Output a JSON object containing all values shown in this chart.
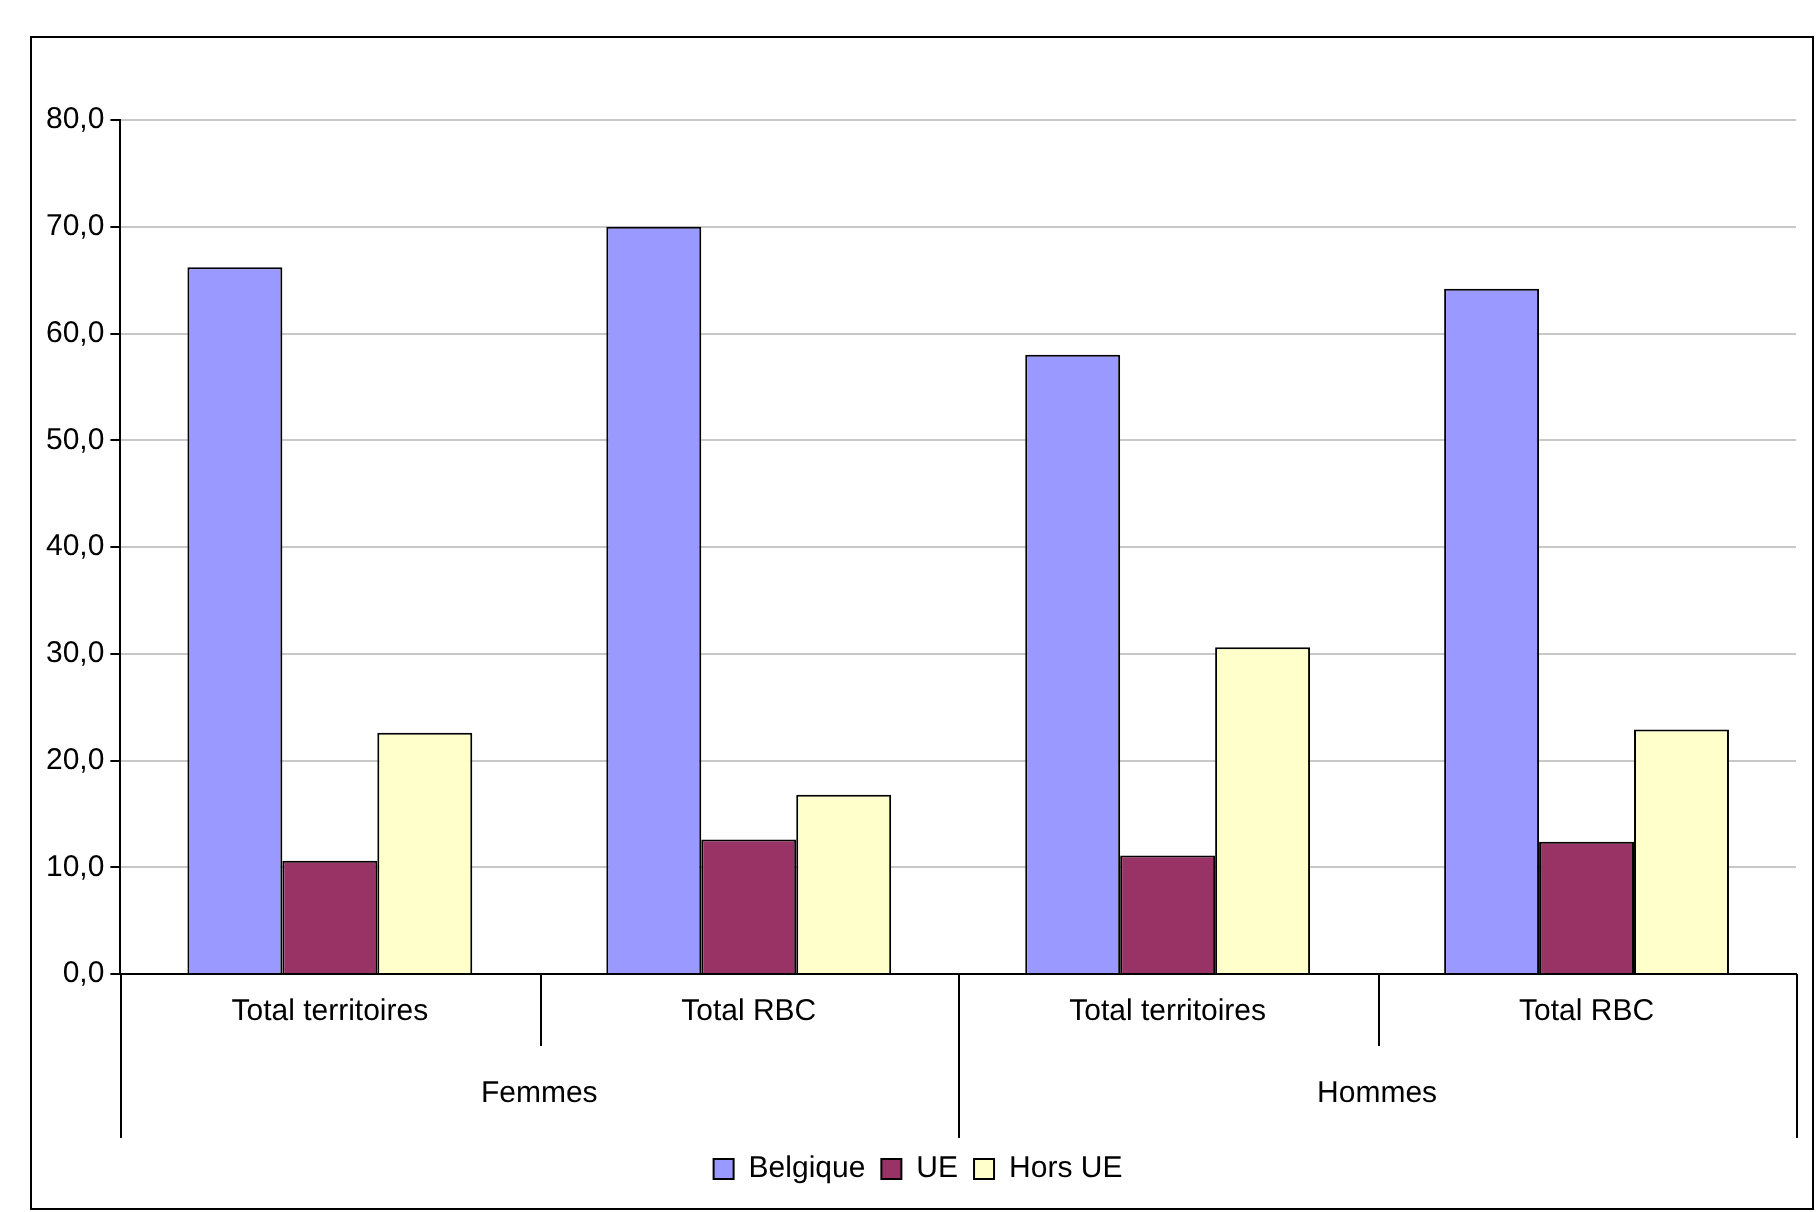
{
  "chart_data": {
    "type": "bar",
    "categories": [
      "Total territoires",
      "Total RBC",
      "Total territoires",
      "Total RBC"
    ],
    "annotations": [
      "Femmes",
      "Hommes"
    ],
    "series": [
      {
        "name": "Belgique",
        "color": "#9999ff",
        "values": [
          66.2,
          70.0,
          58.0,
          64.2
        ]
      },
      {
        "name": "UE",
        "color": "#993366",
        "values": [
          10.6,
          12.6,
          11.1,
          12.4
        ]
      },
      {
        "name": "Hors UE",
        "color": "#ffffcc",
        "values": [
          22.6,
          16.8,
          30.6,
          22.9
        ]
      }
    ],
    "ylim": [
      0,
      80
    ],
    "yticks": [
      {
        "value": 0,
        "label": "0,0"
      },
      {
        "value": 10,
        "label": "10,0"
      },
      {
        "value": 20,
        "label": "20,0"
      },
      {
        "value": 30,
        "label": "30,0"
      },
      {
        "value": 40,
        "label": "40,0"
      },
      {
        "value": 50,
        "label": "50,0"
      },
      {
        "value": 60,
        "label": "60,0"
      },
      {
        "value": 70,
        "label": "70,0"
      },
      {
        "value": 80,
        "label": "80,0"
      }
    ],
    "grid": "y",
    "legend": "bottom"
  }
}
